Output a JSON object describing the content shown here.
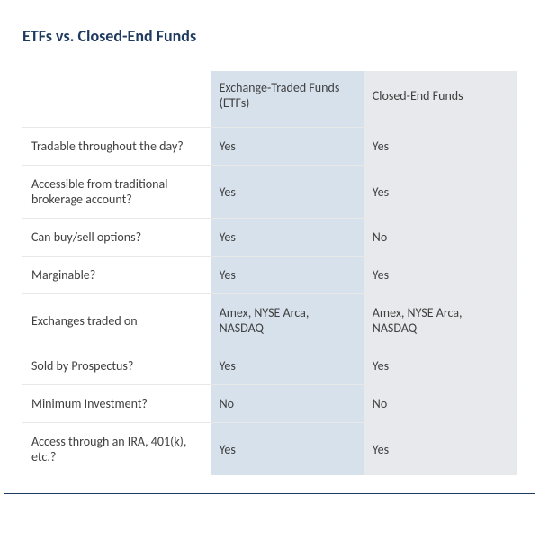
{
  "title": "ETFs vs. Closed-End Funds",
  "table": {
    "columns": [
      {
        "label": ""
      },
      {
        "label": "Exchange-Traded Funds (ETFs)",
        "bg": "#d6e1ec"
      },
      {
        "label": "Closed-End Funds",
        "bg": "#e8e9ec"
      }
    ],
    "rows": [
      {
        "label": "Tradable throughout the day?",
        "etf": "Yes",
        "cef": "Yes"
      },
      {
        "label": "Accessible from traditional brokerage account?",
        "etf": "Yes",
        "cef": "Yes"
      },
      {
        "label": "Can buy/sell options?",
        "etf": "Yes",
        "cef": "No"
      },
      {
        "label": "Marginable?",
        "etf": "Yes",
        "cef": "Yes"
      },
      {
        "label": "Exchanges  traded on",
        "etf": "Amex, NYSE Arca, NASDAQ",
        "cef": "Amex, NYSE Arca, NASDAQ"
      },
      {
        "label": "Sold by Prospectus?",
        "etf": "Yes",
        "cef": "Yes"
      },
      {
        "label": "Minimum Investment?",
        "etf": "No",
        "cef": "No"
      },
      {
        "label": "Access through an IRA, 401(k), etc.?",
        "etf": "Yes",
        "cef": "Yes"
      }
    ],
    "colors": {
      "border": "#1f3a5f",
      "title": "#1f3a5f",
      "text": "#404040",
      "row_divider": "#e8e8e8",
      "etf_bg": "#d6e1ec",
      "cef_bg": "#e8e9ec"
    },
    "font_family": "Calibri",
    "title_fontsize": 18,
    "cell_fontsize": 14
  }
}
